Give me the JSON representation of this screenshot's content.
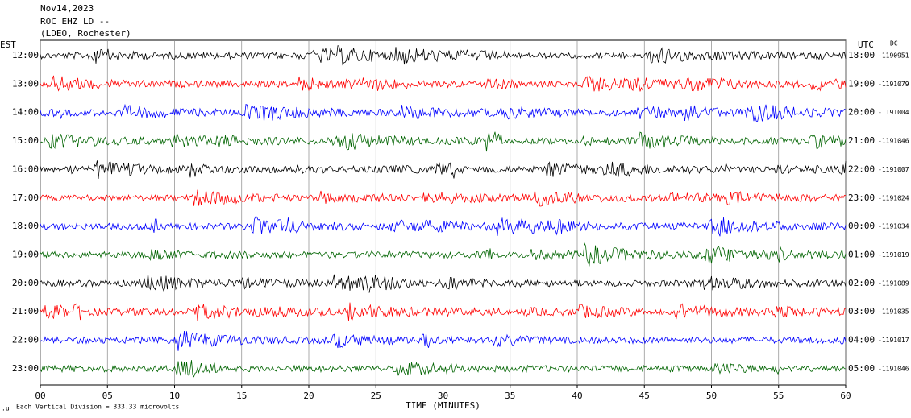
{
  "header": {
    "date": "Nov14,2023",
    "station": "ROC EHZ LD --",
    "source": "(LDEO, Rochester)"
  },
  "left_axis_title": "EST",
  "right_axis_title": "UTC",
  "dc_title": "DC",
  "rows": [
    {
      "est": "12:00",
      "utc": "18:00",
      "dc": "-1190951",
      "color": "#000000"
    },
    {
      "est": "13:00",
      "utc": "19:00",
      "dc": "-1191079",
      "color": "#ff0000"
    },
    {
      "est": "14:00",
      "utc": "20:00",
      "dc": "-1191004",
      "color": "#0000ff"
    },
    {
      "est": "15:00",
      "utc": "21:00",
      "dc": "-1191046",
      "color": "#006400"
    },
    {
      "est": "16:00",
      "utc": "22:00",
      "dc": "-1191007",
      "color": "#000000"
    },
    {
      "est": "17:00",
      "utc": "23:00",
      "dc": "-1191024",
      "color": "#ff0000"
    },
    {
      "est": "18:00",
      "utc": "00:00",
      "dc": "-1191034",
      "color": "#0000ff"
    },
    {
      "est": "19:00",
      "utc": "01:00",
      "dc": "-1191019",
      "color": "#006400"
    },
    {
      "est": "20:00",
      "utc": "02:00",
      "dc": "-1191089",
      "color": "#000000"
    },
    {
      "est": "21:00",
      "utc": "03:00",
      "dc": "-1191035",
      "color": "#ff0000"
    },
    {
      "est": "22:00",
      "utc": "04:00",
      "dc": "-1191017",
      "color": "#0000ff"
    },
    {
      "est": "23:00",
      "utc": "05:00",
      "dc": "-1191046",
      "color": "#006400"
    }
  ],
  "x_axis": {
    "title": "TIME (MINUTES)",
    "xlim": [
      0,
      60
    ],
    "ticks": [
      {
        "value": 0,
        "label": "00"
      },
      {
        "value": 5,
        "label": "05"
      },
      10,
      15,
      20,
      25,
      30,
      35,
      40,
      45,
      50,
      55,
      60
    ]
  },
  "footer": "Each Vertical Division =  333.33 microvolts"
}
